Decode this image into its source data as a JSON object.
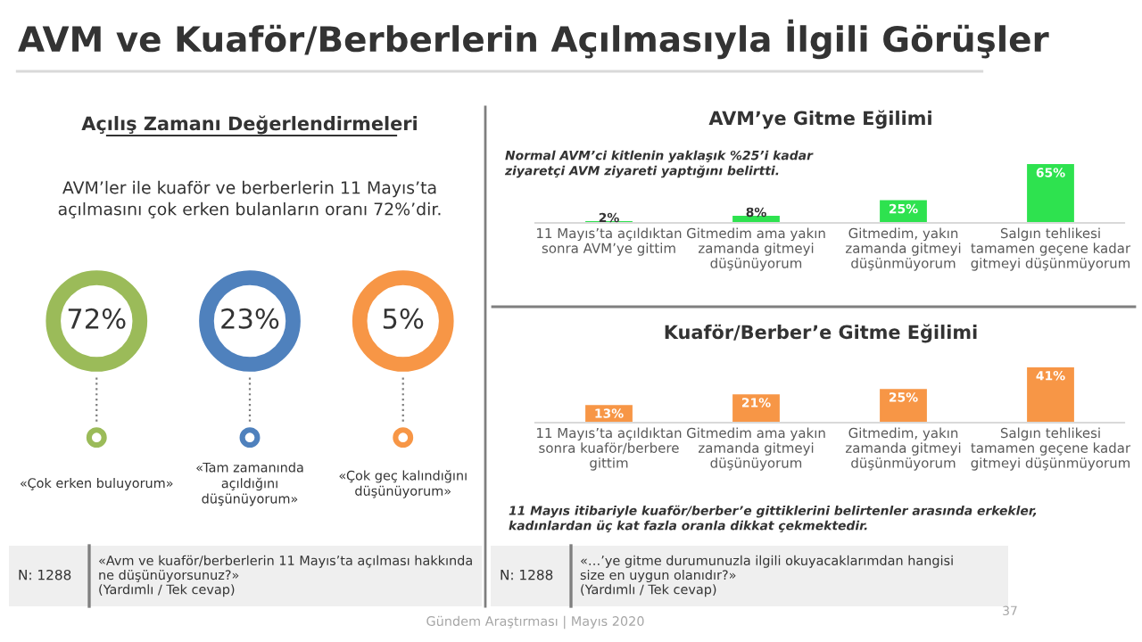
{
  "chart_data": [
    {
      "type": "other",
      "title": "AVM ve Kuaför/Berberlerin Açılmasıyla İlgili Görüşler",
      "subtitle": "Açılış Zamanı Değerlendirmeleri",
      "categories": [
        "«Çok erken buluyorum»",
        "«Tam zamanında açıldığını düşünüyorum»",
        "«Çok geç kalındığını düşünüyorum»"
      ],
      "values": [
        72,
        23,
        5
      ],
      "value_labels": [
        "72%",
        "23%",
        "5%"
      ],
      "colors": [
        "#9bbb59",
        "#4f81bd",
        "#f79646"
      ],
      "annotations": [
        "AVM’ler ile kuaför ve berberlerin 11 Mayıs’ta açılmasını çok erken bulanların oranı 72%’dir.",
        "N: 1288",
        "«Avm ve kuaför/berberlerin 11 Mayıs’ta açılması hakkında ne düşünüyorsunuz?»\n(Yardımlı / Tek cevap)",
        "Gündem Araştırması | Mayıs 2020",
        "37"
      ]
    },
    {
      "type": "bar",
      "title": "AVM’ye Gitme Eğilimi",
      "categories": [
        "11 Mayıs’ta açıldıktan sonra AVM’ye gittim",
        "Gitmedim ama yakın zamanda gitmeyi düşünüyorum",
        "Gitmedim, yakın zamanda gitmeyi düşünmüyorum",
        "Salgın tehlikesi tamamen geçene kadar gitmeyi düşünmüyorum"
      ],
      "values": [
        2,
        8,
        25,
        65
      ],
      "value_labels": [
        "2%",
        "8%",
        "25%",
        "65%"
      ],
      "color": "#2ee24f",
      "annotations": [
        "Normal AVM’ci kitlenin yaklaşık %25’i kadar ziyaretçi AVM ziyareti yaptığını belirtti."
      ]
    },
    {
      "type": "bar",
      "title": "Kuaför/Berber’e Gitme Eğilimi",
      "categories": [
        "11 Mayıs’ta açıldıktan sonra kuaför/berbere gittim",
        "Gitmedim ama yakın zamanda gitmeyi düşünüyorum",
        "Gitmedim, yakın zamanda gitmeyi düşünmüyorum",
        "Salgın tehlikesi tamamen geçene kadar gitmeyi düşünmüyorum"
      ],
      "values": [
        13,
        21,
        25,
        41
      ],
      "value_labels": [
        "13%",
        "21%",
        "25%",
        "41%"
      ],
      "color": "#f79646",
      "annotations": [
        "11 Mayıs itibariyle kuaför/berber’e gittiklerini belirtenler arasında erkekler, kadınlardan üç kat fazla oranla dikkat çekmektedir.",
        "N: 1288",
        "«…’ye gitme durumunuzla ilgili okuyacaklarımdan hangisi size en uygun olanıdır?»\n(Yardımlı / Tek cevap)"
      ]
    }
  ]
}
